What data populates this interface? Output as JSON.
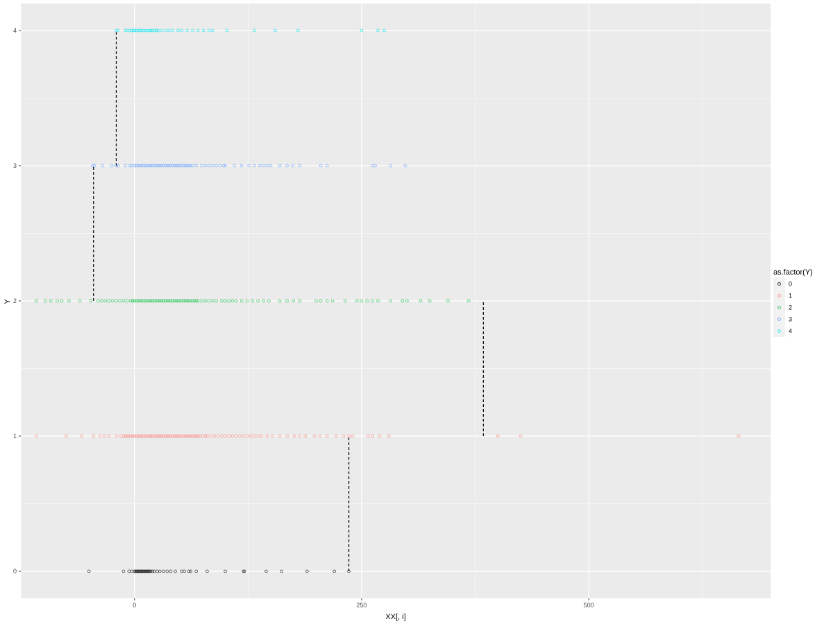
{
  "chart_data": {
    "type": "scatter",
    "title": "",
    "xlabel": "XX[, i]",
    "ylabel": "Y",
    "xlim": [
      -125,
      700
    ],
    "ylim": [
      -0.2,
      4.2
    ],
    "x_ticks": [
      0,
      250,
      500
    ],
    "y_ticks": [
      0,
      1,
      2,
      3,
      4
    ],
    "grid": true,
    "legend": {
      "title": "as.factor(Y)",
      "position": "right"
    },
    "series": [
      {
        "name": "0",
        "color": "#000000",
        "y": 0,
        "x": [
          -50,
          -12,
          -6,
          -3,
          0,
          1,
          2,
          3,
          4,
          5,
          6,
          7,
          8,
          9,
          10,
          11,
          12,
          13,
          14,
          15,
          16,
          17,
          18,
          20,
          22,
          25,
          28,
          32,
          36,
          40,
          45,
          52,
          55,
          60,
          62,
          68,
          80,
          100,
          120,
          121,
          145,
          162,
          190,
          220,
          236
        ]
      },
      {
        "name": "1",
        "color": "#f8766d",
        "y": 1,
        "x": [
          -108,
          -75,
          -58,
          -45,
          -38,
          -33,
          -28,
          -20,
          -15,
          -12,
          -10,
          -8,
          -6,
          -4,
          -2,
          0,
          2,
          4,
          6,
          8,
          10,
          12,
          14,
          16,
          18,
          20,
          22,
          24,
          26,
          28,
          30,
          32,
          34,
          36,
          38,
          40,
          42,
          44,
          46,
          48,
          50,
          52,
          54,
          56,
          58,
          60,
          62,
          64,
          66,
          68,
          70,
          72,
          75,
          78,
          80,
          84,
          88,
          92,
          96,
          100,
          104,
          108,
          112,
          116,
          120,
          124,
          128,
          132,
          136,
          140,
          146,
          152,
          160,
          168,
          176,
          182,
          188,
          198,
          204,
          212,
          222,
          230,
          236,
          240,
          257,
          262,
          270,
          280,
          400,
          425,
          665
        ]
      },
      {
        "name": "2",
        "color": "#00ba38",
        "y": 2,
        "x": [
          -108,
          -98,
          -92,
          -85,
          -80,
          -72,
          -60,
          -48,
          -40,
          -36,
          -32,
          -28,
          -24,
          -20,
          -16,
          -12,
          -8,
          -4,
          -2,
          0,
          2,
          4,
          6,
          8,
          10,
          12,
          14,
          16,
          18,
          20,
          22,
          24,
          26,
          28,
          30,
          32,
          34,
          36,
          38,
          40,
          42,
          44,
          46,
          48,
          50,
          52,
          54,
          56,
          58,
          60,
          62,
          64,
          66,
          68,
          70,
          74,
          78,
          82,
          86,
          90,
          96,
          100,
          104,
          108,
          112,
          118,
          124,
          130,
          136,
          142,
          148,
          160,
          168,
          175,
          182,
          200,
          205,
          212,
          218,
          232,
          245,
          250,
          256,
          262,
          268,
          282,
          295,
          300,
          315,
          325,
          345,
          368
        ]
      },
      {
        "name": "3",
        "color": "#619cff",
        "y": 3,
        "x": [
          -46,
          -44,
          -35,
          -25,
          -20,
          -18,
          -10,
          -5,
          -3,
          0,
          2,
          4,
          6,
          8,
          10,
          12,
          14,
          16,
          18,
          20,
          22,
          24,
          26,
          28,
          30,
          32,
          34,
          36,
          38,
          40,
          42,
          44,
          46,
          48,
          50,
          52,
          54,
          56,
          58,
          60,
          62,
          64,
          68,
          74,
          78,
          82,
          86,
          90,
          94,
          98,
          100,
          110,
          118,
          126,
          132,
          138,
          142,
          146,
          150,
          160,
          168,
          174,
          182,
          205,
          212,
          262,
          265,
          282,
          298
        ]
      },
      {
        "name": "4",
        "color": "#00e5ee",
        "y": 4,
        "x": [
          -20,
          -18,
          -10,
          -8,
          -5,
          -3,
          -1,
          0,
          2,
          4,
          6,
          8,
          10,
          12,
          14,
          16,
          18,
          20,
          22,
          24,
          26,
          30,
          34,
          38,
          42,
          48,
          52,
          58,
          64,
          70,
          76,
          82,
          86,
          102,
          132,
          155,
          180,
          250,
          268,
          275
        ]
      }
    ],
    "step_lines": [
      {
        "from": [
          236,
          0
        ],
        "to": [
          236,
          1
        ]
      },
      {
        "from": [
          -45,
          2
        ],
        "to": [
          -45,
          3
        ]
      },
      {
        "from": [
          384,
          1
        ],
        "to": [
          384,
          2
        ]
      },
      {
        "from": [
          -20,
          3
        ],
        "to": [
          -20,
          4
        ]
      }
    ]
  }
}
